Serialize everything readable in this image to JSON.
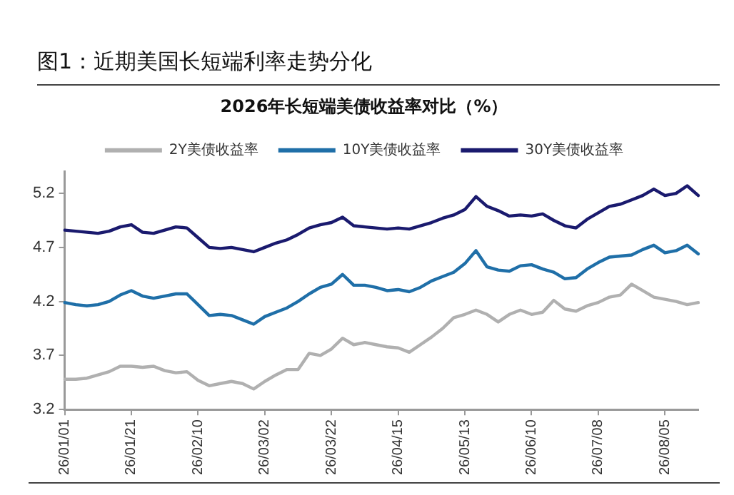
{
  "chart_data": {
    "type": "line",
    "title": "图1：近期美国长短端利率走势分化",
    "subtitle": "2026年长短端美债收益率对比（%）",
    "categories": [
      "26/01/01",
      null,
      null,
      null,
      null,
      null,
      "26/01/21",
      null,
      null,
      null,
      null,
      null,
      "26/02/10",
      null,
      null,
      null,
      null,
      null,
      "26/03/02",
      null,
      null,
      null,
      null,
      null,
      "26/03/22",
      null,
      null,
      null,
      null,
      null,
      "26/04/15",
      null,
      null,
      null,
      null,
      null,
      "26/05/13",
      null,
      null,
      null,
      null,
      null,
      "26/06/10",
      null,
      null,
      null,
      null,
      null,
      "26/07/08",
      null,
      null,
      null,
      null,
      null,
      "26/08/05",
      null,
      null,
      null
    ],
    "series": [
      {
        "name": "2Y美债收益率",
        "color": "#b0b0b0",
        "values": [
          3.48,
          3.48,
          3.49,
          3.52,
          3.55,
          3.6,
          3.6,
          3.59,
          3.6,
          3.56,
          3.54,
          3.55,
          3.47,
          3.42,
          3.44,
          3.46,
          3.44,
          3.39,
          3.46,
          3.52,
          3.57,
          3.57,
          3.72,
          3.7,
          3.76,
          3.86,
          3.8,
          3.82,
          3.8,
          3.78,
          3.77,
          3.73,
          3.8,
          3.87,
          3.95,
          4.05,
          4.08,
          4.12,
          4.08,
          4.01,
          4.08,
          4.12,
          4.08,
          4.1,
          4.21,
          4.13,
          4.11,
          4.16,
          4.19,
          4.24,
          4.26,
          4.36,
          4.3,
          4.24,
          4.22,
          4.2,
          4.17,
          4.19
        ]
      },
      {
        "name": "10Y美债收益率",
        "color": "#1f6fa8",
        "values": [
          4.19,
          4.17,
          4.16,
          4.17,
          4.2,
          4.26,
          4.3,
          4.25,
          4.23,
          4.25,
          4.27,
          4.27,
          4.17,
          4.07,
          4.08,
          4.07,
          4.03,
          3.99,
          4.06,
          4.1,
          4.14,
          4.2,
          4.27,
          4.33,
          4.36,
          4.45,
          4.35,
          4.35,
          4.33,
          4.3,
          4.31,
          4.29,
          4.33,
          4.39,
          4.43,
          4.47,
          4.55,
          4.67,
          4.52,
          4.49,
          4.48,
          4.53,
          4.54,
          4.5,
          4.47,
          4.41,
          4.42,
          4.5,
          4.56,
          4.61,
          4.62,
          4.63,
          4.68,
          4.72,
          4.65,
          4.67,
          4.72,
          4.64
        ]
      },
      {
        "name": "30Y美债收益率",
        "color": "#1a1a6e",
        "values": [
          4.86,
          4.85,
          4.84,
          4.83,
          4.85,
          4.89,
          4.91,
          4.84,
          4.83,
          4.86,
          4.89,
          4.88,
          4.79,
          4.7,
          4.69,
          4.7,
          4.68,
          4.66,
          4.7,
          4.74,
          4.77,
          4.82,
          4.88,
          4.91,
          4.93,
          4.98,
          4.9,
          4.89,
          4.88,
          4.87,
          4.88,
          4.87,
          4.9,
          4.93,
          4.97,
          5.0,
          5.05,
          5.17,
          5.08,
          5.04,
          4.99,
          5.0,
          4.99,
          5.01,
          4.95,
          4.9,
          4.88,
          4.96,
          5.02,
          5.08,
          5.1,
          5.14,
          5.18,
          5.24,
          5.18,
          5.2,
          5.27,
          5.18
        ]
      }
    ],
    "ylim": [
      3.2,
      5.4
    ],
    "yticks": [
      3.2,
      3.7,
      4.2,
      4.7,
      5.2
    ],
    "grid": false,
    "legend": "top",
    "marker": "none",
    "line_style": "solid"
  }
}
